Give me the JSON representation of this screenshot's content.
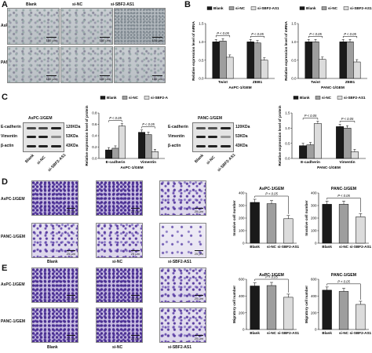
{
  "panels": {
    "A": "A",
    "B": "B",
    "C": "C",
    "D": "D",
    "E": "E"
  },
  "groups": [
    "Blank",
    "si-NC",
    "si-SBF2-AS1"
  ],
  "groups_short": [
    "Blank",
    "si-NC",
    "si-SBF2-AS1"
  ],
  "cell_lines": [
    "AsPC-1/GEM",
    "PANC-1/GEM"
  ],
  "scale_100": "100 μm",
  "scale_25": "25 μm",
  "legend": [
    "Blank",
    "si-NC",
    "si-SBF2-AS1"
  ],
  "wb": {
    "proteins": [
      "E-cadherin",
      "Vimentin",
      "β-actin"
    ],
    "sizes": [
      "120KDa",
      "53KDa",
      "43KDa"
    ]
  },
  "colors": {
    "blank": "#1a1a1a",
    "sinc": "#9e9e9e",
    "sisbf2": "#dcdcdc"
  },
  "chart_data": [
    {
      "id": "B-left",
      "type": "bar",
      "ylabel": "Relative expression level of mRNA",
      "xlabel": "AsPC-1/GEM",
      "categories": [
        "Twist",
        "ZEB1"
      ],
      "ylim": [
        0,
        1.5
      ],
      "yticks": [
        "0.0",
        "0.5",
        "1.0",
        "1.5"
      ],
      "series": [
        {
          "name": "Blank",
          "values": [
            1.0,
            1.0
          ]
        },
        {
          "name": "si-NC",
          "values": [
            1.02,
            0.97
          ]
        },
        {
          "name": "si-SBF2-AS1",
          "values": [
            0.58,
            0.5
          ]
        }
      ],
      "annotation": "P < 0.05"
    },
    {
      "id": "B-right",
      "type": "bar",
      "ylabel": "Relative expression level of mRNA",
      "xlabel": "PANC-1/GEM",
      "categories": [
        "Twist",
        "ZEB1"
      ],
      "ylim": [
        0,
        1.5
      ],
      "yticks": [
        "0.0",
        "0.5",
        "1.0",
        "1.5"
      ],
      "series": [
        {
          "name": "Blank",
          "values": [
            1.0,
            1.0
          ]
        },
        {
          "name": "si-NC",
          "values": [
            1.0,
            1.0
          ]
        },
        {
          "name": "si-SBF2-AS1",
          "values": [
            0.52,
            0.45
          ]
        }
      ],
      "annotation": "P < 0.05"
    },
    {
      "id": "C-left",
      "type": "bar",
      "ylabel": "Relative expression level of protein",
      "xlabel": "AsPC-1/GEM",
      "categories": [
        "E-cadherin",
        "Vimentin"
      ],
      "ylim": [
        0,
        0.8
      ],
      "yticks": [
        "0.0",
        "0.2",
        "0.4",
        "0.6",
        "0.8"
      ],
      "series": [
        {
          "name": "Blank",
          "values": [
            0.15,
            0.46
          ]
        },
        {
          "name": "si-NC",
          "values": [
            0.18,
            0.42
          ]
        },
        {
          "name": "si-SBF2-AS1",
          "values": [
            0.57,
            0.12
          ]
        }
      ],
      "annotation": "P < 0.05"
    },
    {
      "id": "C-right",
      "type": "bar",
      "ylabel": "Relative expression level of protein",
      "xlabel": "PANC-1/GEM",
      "categories": [
        "E-cadherin",
        "Vimentin"
      ],
      "ylim": [
        0,
        1.5
      ],
      "yticks": [
        "0.0",
        "0.5",
        "1.0",
        "1.5"
      ],
      "series": [
        {
          "name": "Blank",
          "values": [
            0.42,
            1.05
          ]
        },
        {
          "name": "si-NC",
          "values": [
            0.45,
            1.0
          ]
        },
        {
          "name": "si-SBF2-AS1",
          "values": [
            1.15,
            0.22
          ]
        }
      ],
      "annotation": "P < 0.05"
    },
    {
      "id": "D-left",
      "type": "bar",
      "title": "AsPC-1/GEM",
      "ylabel": "Invasive cell number",
      "categories": [
        "Blank",
        "si-NC",
        "si-SBF2-AS1"
      ],
      "ylim": [
        0,
        400
      ],
      "yticks": [
        "0",
        "100",
        "200",
        "300",
        "400"
      ],
      "series": [
        {
          "values": [
            325,
            315,
            195
          ]
        }
      ],
      "annotation": "P < 0.05"
    },
    {
      "id": "D-right",
      "type": "bar",
      "title": "PANC-1/GEM",
      "ylabel": "Invasive cell number",
      "categories": [
        "Blank",
        "si-NC",
        "si-SBF2-AS1"
      ],
      "ylim": [
        0,
        400
      ],
      "yticks": [
        "0",
        "100",
        "200",
        "300",
        "400"
      ],
      "series": [
        {
          "values": [
            310,
            310,
            210
          ]
        }
      ],
      "annotation": "P < 0.05"
    },
    {
      "id": "E-left",
      "type": "bar",
      "title": "AsPC-1/GEM",
      "ylabel": "Migratory cell number",
      "categories": [
        "Blank",
        "si-NC",
        "si-SBF2-AS1"
      ],
      "ylim": [
        0,
        600
      ],
      "yticks": [
        "0",
        "200",
        "400",
        "600"
      ],
      "series": [
        {
          "values": [
            520,
            525,
            385
          ]
        }
      ],
      "annotation": "P < 0.05"
    },
    {
      "id": "E-right",
      "type": "bar",
      "title": "PANC-1/GEM",
      "ylabel": "Migratory cell number",
      "categories": [
        "Blank",
        "si-NC",
        "si-SBF2-AS1"
      ],
      "ylim": [
        0,
        600
      ],
      "yticks": [
        "0",
        "200",
        "400",
        "600"
      ],
      "series": [
        {
          "values": [
            470,
            455,
            300
          ]
        }
      ],
      "annotation": "P < 0.05"
    }
  ]
}
